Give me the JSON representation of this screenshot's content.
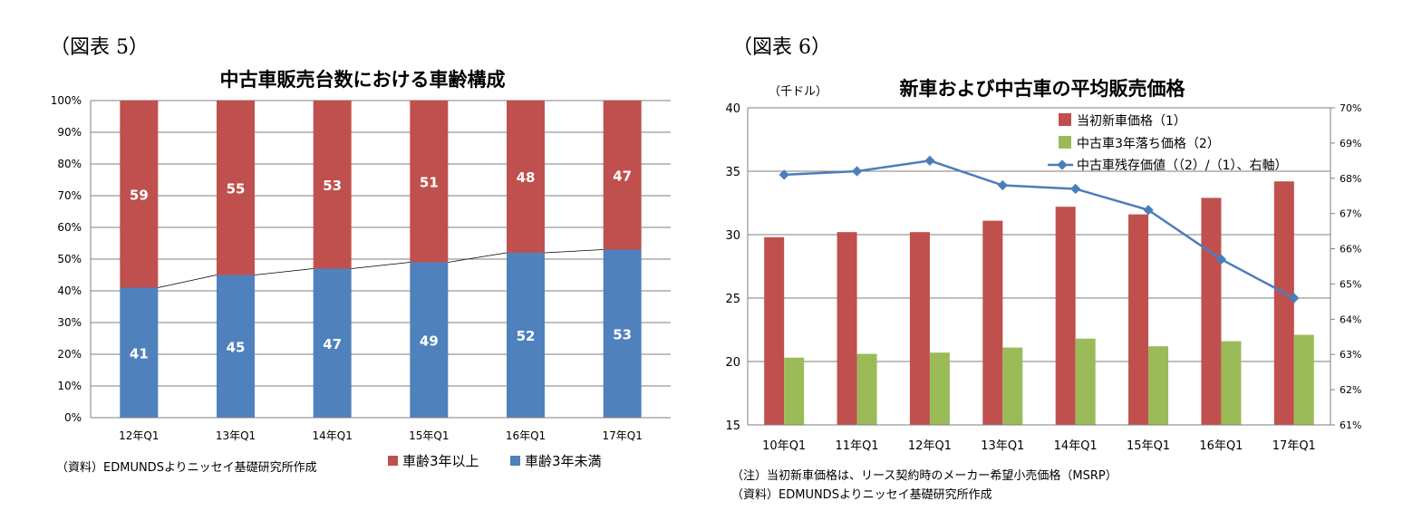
{
  "fig5": {
    "label": "（図表 5）",
    "source": "（資料）EDMUNDSよりニッセイ基礎研究所作成"
  },
  "fig6": {
    "label": "（図表 6）",
    "unit": "（千ドル）",
    "note": "（注）当初新車価格は、リース契約時のメーカー希望小売価格（MSRP）",
    "source": "（資料）EDMUNDSよりニッセイ基礎研究所作成"
  },
  "colors": {
    "red": "#c0504d",
    "blue": "#4f81bd",
    "green": "#9bbb59",
    "line": "#4a7ebb"
  },
  "chart_data": [
    {
      "type": "bar",
      "stacked": true,
      "percent": true,
      "title": "中古車販売台数における車齢構成",
      "categories": [
        "12年Q1",
        "13年Q1",
        "14年Q1",
        "15年Q1",
        "16年Q1",
        "17年Q1"
      ],
      "series": [
        {
          "name": "車齢3年未満",
          "values": [
            41,
            45,
            47,
            49,
            52,
            53
          ],
          "color": "#4f81bd"
        },
        {
          "name": "車齢3年以上",
          "values": [
            59,
            55,
            53,
            51,
            48,
            47
          ],
          "color": "#c0504d"
        }
      ],
      "yticks": [
        "0%",
        "10%",
        "20%",
        "30%",
        "40%",
        "50%",
        "60%",
        "70%",
        "80%",
        "90%",
        "100%"
      ],
      "ylim": [
        0,
        100
      ],
      "legend": "bottom",
      "grid": true
    },
    {
      "type": "bar",
      "title": "新車および中古車の平均販売価格",
      "categories": [
        "10年Q1",
        "11年Q1",
        "12年Q1",
        "13年Q1",
        "14年Q1",
        "15年Q1",
        "16年Q1",
        "17年Q1"
      ],
      "series": [
        {
          "name": "当初新車価格（1）",
          "type": "bar",
          "axis": "left",
          "values": [
            29.8,
            30.2,
            30.2,
            31.1,
            32.2,
            31.6,
            32.9,
            34.2
          ],
          "color": "#c0504d"
        },
        {
          "name": "中古車3年落ち価格（2）",
          "type": "bar",
          "axis": "left",
          "values": [
            20.3,
            20.6,
            20.7,
            21.1,
            21.8,
            21.2,
            21.6,
            22.1
          ],
          "color": "#9bbb59"
        },
        {
          "name": "中古車残存価値（（2）/（1）、右軸）",
          "type": "line",
          "axis": "right",
          "values": [
            68.1,
            68.2,
            68.5,
            67.8,
            67.7,
            67.1,
            65.7,
            64.6
          ],
          "color": "#4a7ebb"
        }
      ],
      "ylim": [
        15,
        40
      ],
      "yticks": [
        "15",
        "20",
        "25",
        "30",
        "35",
        "40"
      ],
      "y2lim": [
        61,
        70
      ],
      "y2ticks": [
        "61%",
        "62%",
        "63%",
        "64%",
        "65%",
        "66%",
        "67%",
        "68%",
        "69%",
        "70%"
      ],
      "legend": "top-right",
      "grid": true
    }
  ]
}
